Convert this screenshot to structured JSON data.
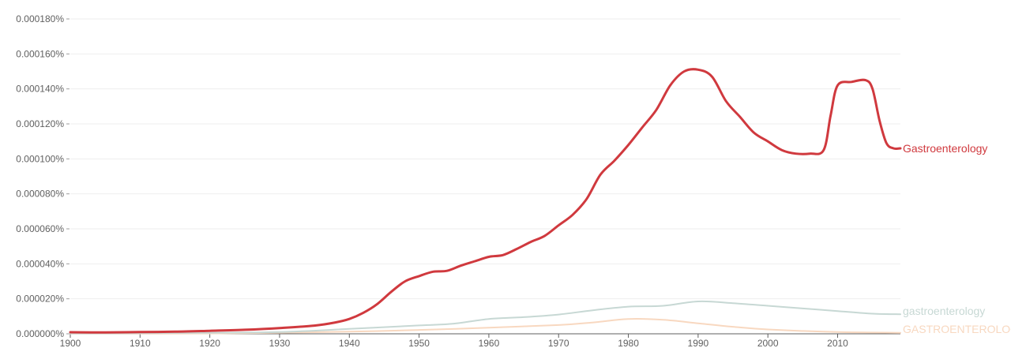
{
  "chart_data": {
    "type": "line",
    "title": "",
    "xlabel": "",
    "ylabel": "",
    "xlim": [
      1900,
      2019
    ],
    "ylim": [
      0,
      0.00018
    ],
    "grid": true,
    "legend": "end-of-line labels",
    "x_ticks": [
      1900,
      1910,
      1920,
      1930,
      1940,
      1950,
      1960,
      1970,
      1980,
      1990,
      2000,
      2010
    ],
    "y_ticks": [
      {
        "value": 0,
        "label": "0.000000%"
      },
      {
        "value": 2e-05,
        "label": "0.000020%"
      },
      {
        "value": 4e-05,
        "label": "0.000040%"
      },
      {
        "value": 6e-05,
        "label": "0.000060%"
      },
      {
        "value": 8e-05,
        "label": "0.000080%"
      },
      {
        "value": 0.0001,
        "label": "0.000100%"
      },
      {
        "value": 0.00012,
        "label": "0.000120%"
      },
      {
        "value": 0.00014,
        "label": "0.000140%"
      },
      {
        "value": 0.00016,
        "label": "0.000160%"
      },
      {
        "value": 0.00018,
        "label": "0.000180%"
      }
    ],
    "series": [
      {
        "name": "Gastroenterology",
        "color": "#d0393e",
        "points": [
          [
            1900,
            9e-07
          ],
          [
            1905,
            8e-07
          ],
          [
            1910,
            1e-06
          ],
          [
            1915,
            1.2e-06
          ],
          [
            1920,
            1.7e-06
          ],
          [
            1925,
            2.3e-06
          ],
          [
            1930,
            3.3e-06
          ],
          [
            1935,
            4.7e-06
          ],
          [
            1938,
            6.5e-06
          ],
          [
            1940,
            8.5e-06
          ],
          [
            1942,
            1.2e-05
          ],
          [
            1944,
            1.7e-05
          ],
          [
            1946,
            2.4e-05
          ],
          [
            1948,
            3e-05
          ],
          [
            1950,
            3.3e-05
          ],
          [
            1952,
            3.55e-05
          ],
          [
            1954,
            3.6e-05
          ],
          [
            1956,
            3.9e-05
          ],
          [
            1958,
            4.15e-05
          ],
          [
            1960,
            4.4e-05
          ],
          [
            1962,
            4.5e-05
          ],
          [
            1964,
            4.85e-05
          ],
          [
            1966,
            5.25e-05
          ],
          [
            1968,
            5.6e-05
          ],
          [
            1970,
            6.2e-05
          ],
          [
            1972,
            6.8e-05
          ],
          [
            1974,
            7.7e-05
          ],
          [
            1976,
            9.1e-05
          ],
          [
            1978,
            9.9e-05
          ],
          [
            1980,
            0.000108
          ],
          [
            1982,
            0.000118
          ],
          [
            1984,
            0.000128
          ],
          [
            1986,
            0.000142
          ],
          [
            1988,
            0.00015
          ],
          [
            1990,
            0.000151
          ],
          [
            1992,
            0.000147
          ],
          [
            1994,
            0.000133
          ],
          [
            1996,
            0.000124
          ],
          [
            1998,
            0.000115
          ],
          [
            2000,
            0.00011
          ],
          [
            2002,
            0.000105
          ],
          [
            2004,
            0.000103
          ],
          [
            2006,
            0.000103
          ],
          [
            2008,
            0.000105
          ],
          [
            2009,
            0.000125
          ],
          [
            2010,
            0.000142
          ],
          [
            2012,
            0.000144
          ],
          [
            2014,
            0.000145
          ],
          [
            2015,
            0.00014
          ],
          [
            2016,
            0.000122
          ],
          [
            2017,
            0.000109
          ],
          [
            2018,
            0.000106
          ],
          [
            2019,
            0.000106
          ]
        ]
      },
      {
        "name": "gastroenterology",
        "color": "#c7d8d4",
        "points": [
          [
            1900,
            2e-07
          ],
          [
            1910,
            3e-07
          ],
          [
            1920,
            6e-07
          ],
          [
            1930,
            1e-06
          ],
          [
            1940,
            2.8e-06
          ],
          [
            1950,
            4.8e-06
          ],
          [
            1955,
            5.8e-06
          ],
          [
            1960,
            8.5e-06
          ],
          [
            1965,
            9.5e-06
          ],
          [
            1970,
            1.1e-05
          ],
          [
            1975,
            1.35e-05
          ],
          [
            1980,
            1.55e-05
          ],
          [
            1985,
            1.6e-05
          ],
          [
            1990,
            1.85e-05
          ],
          [
            1995,
            1.75e-05
          ],
          [
            2000,
            1.6e-05
          ],
          [
            2005,
            1.45e-05
          ],
          [
            2010,
            1.3e-05
          ],
          [
            2015,
            1.15e-05
          ],
          [
            2019,
            1.12e-05
          ]
        ]
      },
      {
        "name": "GASTROENTEROLOGY",
        "color": "#f8d8c0",
        "points": [
          [
            1900,
            1e-07
          ],
          [
            1920,
            2e-07
          ],
          [
            1940,
            1.2e-06
          ],
          [
            1950,
            2.2e-06
          ],
          [
            1960,
            3.5e-06
          ],
          [
            1970,
            5e-06
          ],
          [
            1975,
            6.5e-06
          ],
          [
            1980,
            8.5e-06
          ],
          [
            1985,
            8e-06
          ],
          [
            1990,
            6e-06
          ],
          [
            1995,
            4e-06
          ],
          [
            2000,
            2.5e-06
          ],
          [
            2010,
            1e-06
          ],
          [
            2019,
            6e-07
          ]
        ]
      }
    ]
  }
}
